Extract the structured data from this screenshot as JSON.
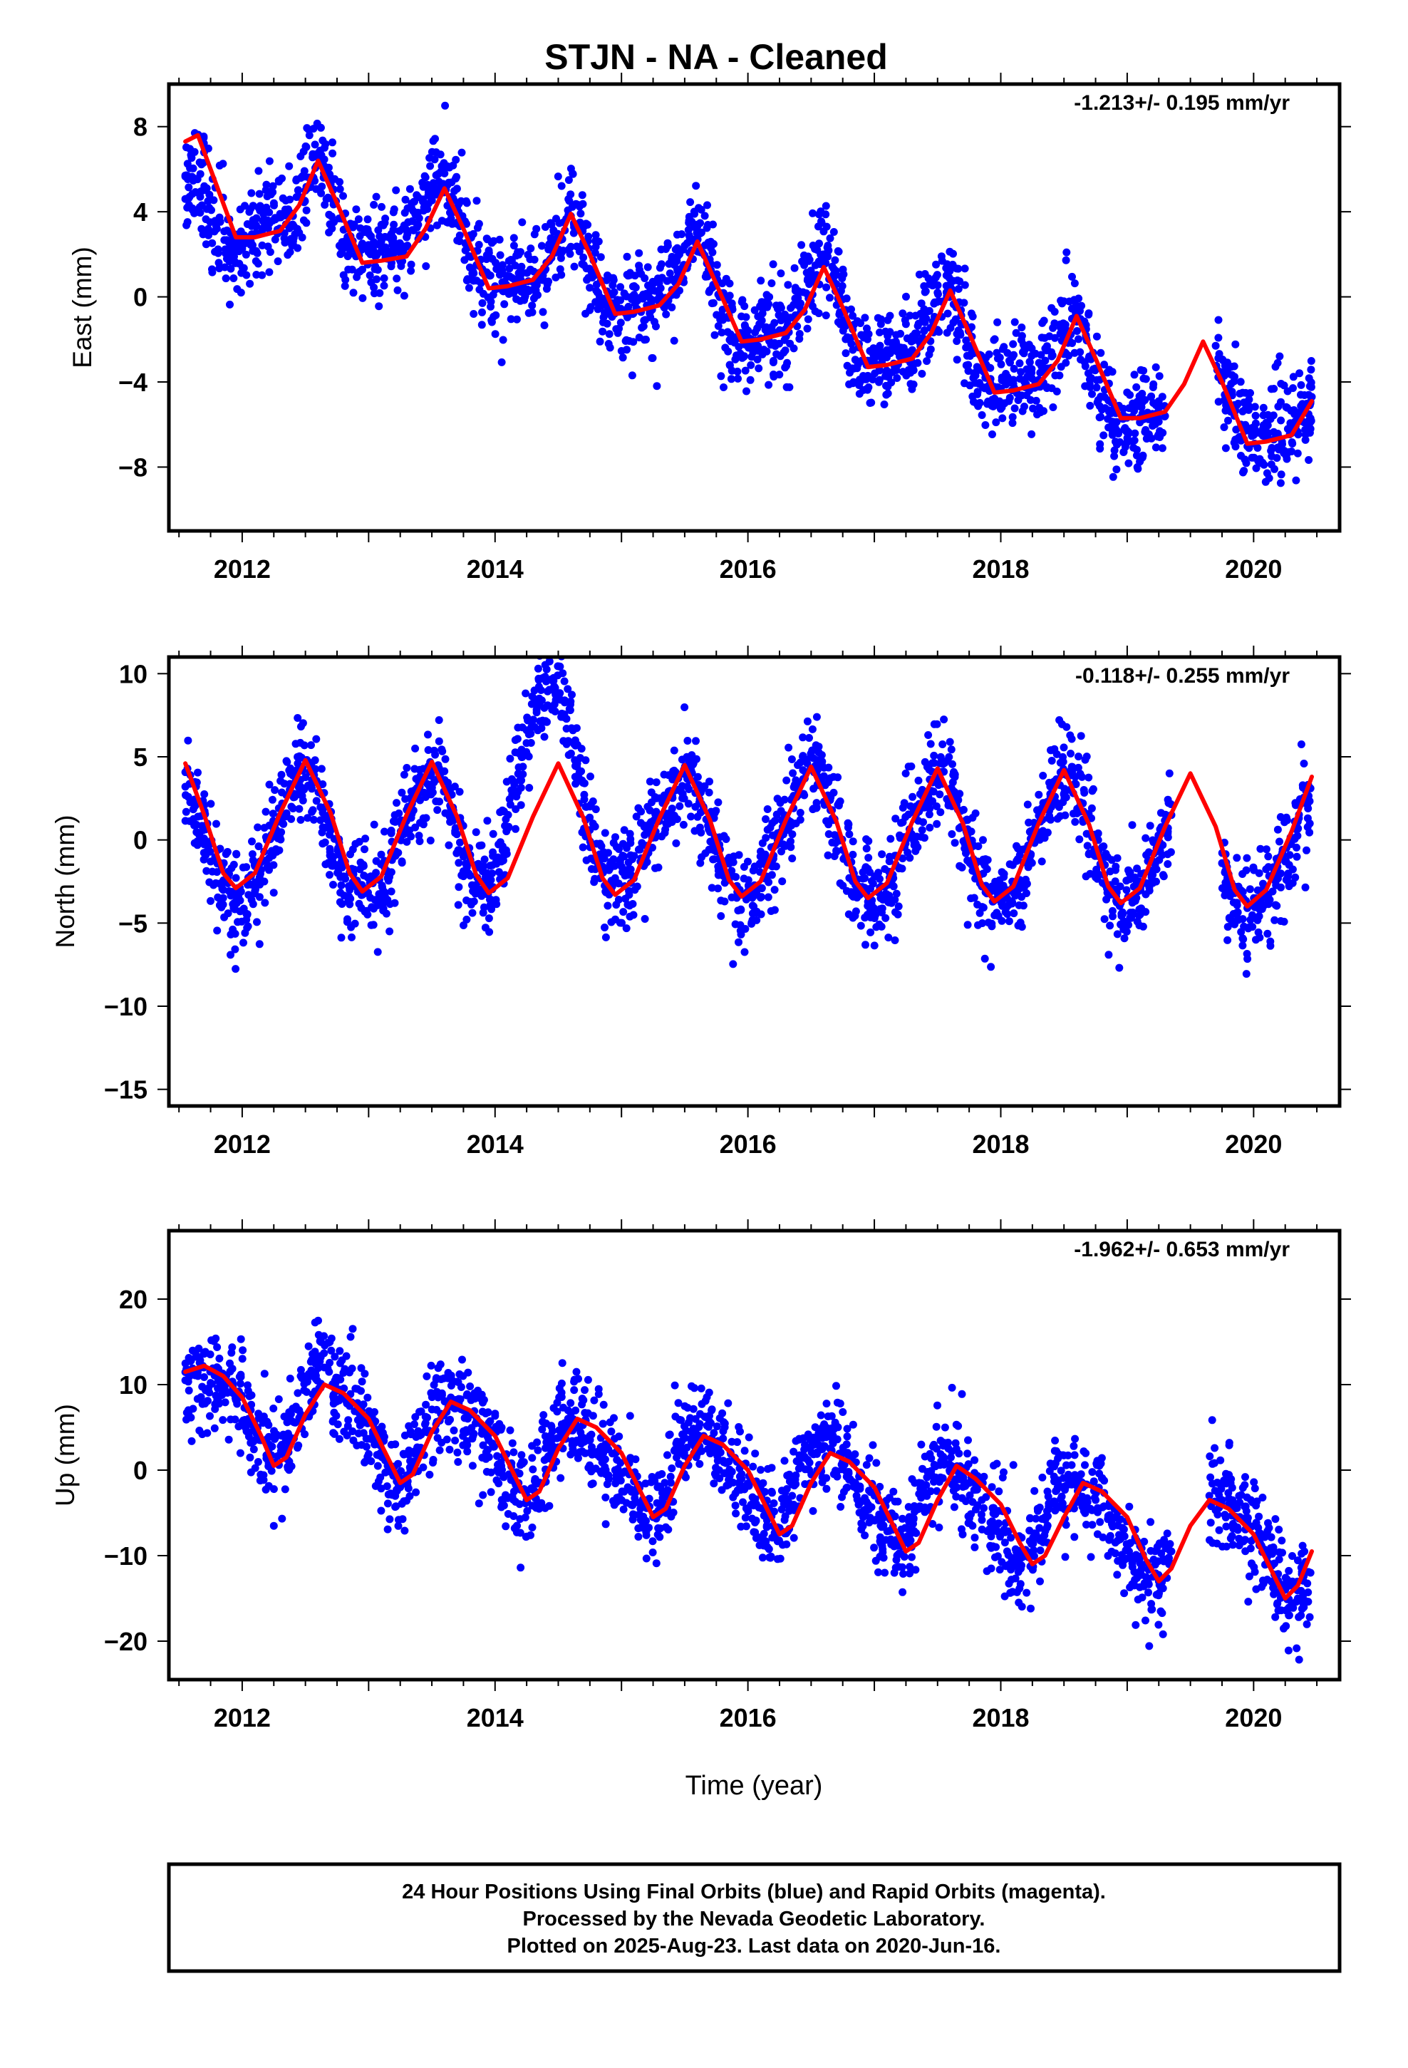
{
  "title": "STJN  - NA - Cleaned",
  "xlabel": "Time (year)",
  "footer": {
    "line1": "24 Hour Positions Using Final Orbits (blue) and Rapid Orbits (magenta).",
    "line2": "Processed by the Nevada Geodetic Laboratory.",
    "line3": "Plotted on 2025-Aug-23. Last data on 2020-Jun-16."
  },
  "colors": {
    "points": "#0000ff",
    "fit": "#ff0000",
    "frame": "#000000",
    "background": "#ffffff"
  },
  "chart_data": [
    {
      "type": "scatter",
      "panel": "east",
      "ylabel": "East (mm)",
      "rate_text": "-1.213+/- 0.195 mm/yr",
      "xlim": [
        2011.42,
        2020.68
      ],
      "ylim": [
        -11,
        10
      ],
      "x_ticks": [
        "2012",
        "2014",
        "2016",
        "2018",
        "2020"
      ],
      "y_ticks": [
        "8",
        "4",
        "0",
        "−4",
        "−8"
      ],
      "grid": false,
      "series": [
        {
          "style": "points",
          "x": [
            2011.55,
            2011.62,
            2011.7,
            2011.8,
            2011.9,
            2012.0,
            2012.1,
            2012.2,
            2012.3,
            2012.4,
            2012.5,
            2012.6,
            2012.7,
            2012.8,
            2012.9,
            2013.0,
            2013.1,
            2013.2,
            2013.3,
            2013.4,
            2013.5,
            2013.6,
            2013.7,
            2013.8,
            2013.9,
            2014.0,
            2014.1,
            2014.2,
            2014.3,
            2014.4,
            2014.5,
            2014.6,
            2014.7,
            2014.8,
            2014.9,
            2015.0,
            2015.1,
            2015.2,
            2015.3,
            2015.4,
            2015.5,
            2015.6,
            2015.7,
            2015.8,
            2015.9,
            2016.0,
            2016.1,
            2016.2,
            2016.3,
            2016.4,
            2016.5,
            2016.6,
            2016.7,
            2016.8,
            2016.9,
            2017.0,
            2017.1,
            2017.2,
            2017.3,
            2017.4,
            2017.5,
            2017.6,
            2017.7,
            2017.8,
            2017.9,
            2018.0,
            2018.1,
            2018.2,
            2018.3,
            2018.4,
            2018.5,
            2018.6,
            2018.7,
            2018.8,
            2018.9,
            2019.0,
            2019.1,
            2019.2,
            2019.3,
            2019.7,
            2019.8,
            2019.9,
            2020.0,
            2020.1,
            2020.2,
            2020.3,
            2020.4,
            2020.46
          ],
          "y": [
            4.6,
            5.5,
            5.2,
            3.2,
            2.3,
            2.6,
            3.4,
            3.6,
            3.9,
            3.4,
            5.0,
            6.6,
            5.3,
            2.4,
            1.9,
            2.1,
            2.6,
            2.3,
            2.8,
            3.7,
            5.1,
            5.8,
            4.2,
            1.9,
            1.3,
            0.5,
            0.4,
            1.0,
            0.7,
            1.3,
            2.9,
            3.8,
            2.4,
            0.3,
            -0.8,
            -0.6,
            0.1,
            -0.4,
            -0.2,
            0.8,
            2.4,
            3.4,
            1.6,
            -0.6,
            -1.9,
            -2.1,
            -1.3,
            -1.7,
            -1.5,
            -0.4,
            0.8,
            1.9,
            0.6,
            -2.0,
            -3.0,
            -3.1,
            -2.5,
            -2.8,
            -2.5,
            -1.2,
            0.2,
            0.5,
            -1.3,
            -3.7,
            -4.2,
            -4.3,
            -3.9,
            -4.1,
            -3.9,
            -2.6,
            -1.3,
            -0.6,
            -2.8,
            -5.3,
            -6.0,
            -6.3,
            -5.9,
            -5.5,
            -5.6,
            -2.3,
            -4.3,
            -6.0,
            -6.5,
            -6.7,
            -6.6,
            -6.4,
            -5.9,
            -4.7
          ]
        },
        {
          "style": "line",
          "x": [
            2011.55,
            2011.65,
            2011.8,
            2011.95,
            2012.1,
            2012.3,
            2012.45,
            2012.6,
            2012.75,
            2012.95,
            2013.1,
            2013.3,
            2013.45,
            2013.6,
            2013.75,
            2013.95,
            2014.1,
            2014.3,
            2014.45,
            2014.6,
            2014.75,
            2014.95,
            2015.1,
            2015.3,
            2015.45,
            2015.6,
            2015.75,
            2015.95,
            2016.1,
            2016.3,
            2016.45,
            2016.6,
            2016.75,
            2016.95,
            2017.1,
            2017.3,
            2017.45,
            2017.6,
            2017.75,
            2017.95,
            2018.1,
            2018.3,
            2018.45,
            2018.6,
            2018.75,
            2018.95,
            2019.1,
            2019.3,
            2019.45,
            2019.6,
            2019.75,
            2019.95,
            2020.1,
            2020.3,
            2020.46
          ],
          "y": [
            7.3,
            7.6,
            5.2,
            2.8,
            2.8,
            3.1,
            4.3,
            6.4,
            4.4,
            1.6,
            1.7,
            1.9,
            3.2,
            5.1,
            3.2,
            0.4,
            0.5,
            0.8,
            1.9,
            3.9,
            2.0,
            -0.8,
            -0.7,
            -0.4,
            0.6,
            2.6,
            0.6,
            -2.1,
            -2.0,
            -1.7,
            -0.6,
            1.4,
            -0.5,
            -3.3,
            -3.2,
            -2.9,
            -1.7,
            0.3,
            -1.7,
            -4.5,
            -4.4,
            -4.1,
            -3.0,
            -0.9,
            -2.9,
            -5.7,
            -5.7,
            -5.4,
            -4.1,
            -2.1,
            -4.0,
            -6.9,
            -6.8,
            -6.5,
            -4.9
          ]
        }
      ]
    },
    {
      "type": "scatter",
      "panel": "north",
      "ylabel": "North (mm)",
      "rate_text": "-0.118+/- 0.255 mm/yr",
      "xlim": [
        2011.42,
        2020.68
      ],
      "ylim": [
        -16,
        11
      ],
      "x_ticks": [
        "2012",
        "2014",
        "2016",
        "2018",
        "2020"
      ],
      "y_ticks": [
        "10",
        "5",
        "0",
        "−5",
        "−10",
        "−15"
      ],
      "grid": false,
      "series": [
        {
          "style": "points",
          "x": [
            2011.55,
            2011.65,
            2011.75,
            2011.85,
            2011.95,
            2012.05,
            2012.15,
            2012.25,
            2012.35,
            2012.45,
            2012.55,
            2012.65,
            2012.75,
            2012.85,
            2012.95,
            2013.05,
            2013.15,
            2013.25,
            2013.35,
            2013.45,
            2013.55,
            2013.65,
            2013.75,
            2013.85,
            2013.95,
            2014.05,
            2014.15,
            2014.25,
            2014.35,
            2014.45,
            2014.55,
            2014.65,
            2014.75,
            2014.85,
            2014.95,
            2015.05,
            2015.15,
            2015.25,
            2015.35,
            2015.45,
            2015.55,
            2015.65,
            2015.75,
            2015.85,
            2015.95,
            2016.05,
            2016.15,
            2016.25,
            2016.35,
            2016.45,
            2016.55,
            2016.65,
            2016.75,
            2016.85,
            2016.95,
            2017.05,
            2017.15,
            2017.25,
            2017.35,
            2017.45,
            2017.55,
            2017.65,
            2017.75,
            2017.85,
            2017.95,
            2018.05,
            2018.15,
            2018.25,
            2018.35,
            2018.45,
            2018.55,
            2018.65,
            2018.75,
            2018.85,
            2018.95,
            2019.05,
            2019.15,
            2019.25,
            2019.35,
            2019.75,
            2019.85,
            2019.95,
            2020.05,
            2020.15,
            2020.25,
            2020.35,
            2020.45
          ],
          "y": [
            3.2,
            1.4,
            -1.3,
            -3.0,
            -3.4,
            -3.3,
            -1.8,
            0.6,
            2.7,
            3.6,
            3.1,
            1.3,
            -1.5,
            -3.0,
            -3.3,
            -3.6,
            -2.3,
            0.3,
            2.4,
            3.8,
            4.5,
            2.0,
            -1.0,
            -2.7,
            -2.6,
            -1.3,
            2.8,
            6.6,
            8.5,
            9.6,
            8.4,
            4.6,
            0.6,
            -1.6,
            -2.3,
            -2.1,
            -1.3,
            0.6,
            2.3,
            3.7,
            4.2,
            1.9,
            -0.7,
            -2.4,
            -3.3,
            -3.3,
            -2.2,
            0.3,
            2.5,
            3.7,
            4.2,
            2.4,
            -0.6,
            -2.7,
            -3.4,
            -3.5,
            -2.3,
            0.1,
            2.1,
            3.6,
            4.1,
            2.1,
            -0.5,
            -2.8,
            -3.6,
            -3.5,
            -2.4,
            -0.1,
            1.9,
            3.4,
            4.1,
            2.2,
            -0.8,
            -2.8,
            -3.8,
            -3.7,
            -2.6,
            -0.6,
            1.5,
            -1.4,
            -3.2,
            -4.1,
            -4.1,
            -3.1,
            -1.3,
            1.1,
            3.1
          ]
        },
        {
          "style": "line",
          "x": [
            2011.55,
            2011.7,
            2011.85,
            2011.95,
            2012.1,
            2012.3,
            2012.5,
            2012.7,
            2012.85,
            2012.95,
            2013.1,
            2013.3,
            2013.5,
            2013.7,
            2013.85,
            2013.95,
            2014.1,
            2014.3,
            2014.5,
            2014.7,
            2014.85,
            2014.95,
            2015.1,
            2015.3,
            2015.5,
            2015.7,
            2015.85,
            2015.95,
            2016.1,
            2016.3,
            2016.5,
            2016.7,
            2016.85,
            2016.95,
            2017.1,
            2017.3,
            2017.5,
            2017.7,
            2017.85,
            2017.95,
            2018.1,
            2018.3,
            2018.5,
            2018.7,
            2018.85,
            2018.95,
            2019.1,
            2019.3,
            2019.5,
            2019.7,
            2019.85,
            2019.95,
            2020.1,
            2020.3,
            2020.46
          ],
          "y": [
            4.6,
            1.5,
            -2.0,
            -2.9,
            -2.0,
            1.6,
            4.8,
            1.6,
            -2.0,
            -3.1,
            -2.2,
            1.5,
            4.7,
            1.4,
            -2.1,
            -3.2,
            -2.3,
            1.4,
            4.6,
            1.3,
            -2.3,
            -3.3,
            -2.4,
            1.3,
            4.5,
            1.2,
            -2.4,
            -3.4,
            -2.5,
            1.2,
            4.4,
            1.1,
            -2.5,
            -3.5,
            -2.6,
            1.1,
            4.3,
            1.0,
            -2.7,
            -3.7,
            -2.8,
            1.0,
            4.2,
            0.9,
            -2.8,
            -3.8,
            -2.9,
            0.8,
            4.0,
            0.8,
            -3.0,
            -4.0,
            -3.0,
            0.5,
            3.8
          ]
        }
      ]
    },
    {
      "type": "scatter",
      "panel": "up",
      "ylabel": "Up (mm)",
      "rate_text": "-1.962+/- 0.653 mm/yr",
      "xlim": [
        2011.42,
        2020.68
      ],
      "ylim": [
        -24.5,
        28
      ],
      "x_ticks": [
        "2012",
        "2014",
        "2016",
        "2018",
        "2020"
      ],
      "y_ticks": [
        "20",
        "10",
        "0",
        "−10",
        "−20"
      ],
      "grid": false,
      "series": [
        {
          "style": "points",
          "x": [
            2011.55,
            2011.65,
            2011.75,
            2011.85,
            2011.95,
            2012.05,
            2012.15,
            2012.25,
            2012.35,
            2012.45,
            2012.55,
            2012.65,
            2012.75,
            2012.85,
            2012.95,
            2013.05,
            2013.15,
            2013.25,
            2013.35,
            2013.45,
            2013.55,
            2013.65,
            2013.75,
            2013.85,
            2013.95,
            2014.05,
            2014.15,
            2014.25,
            2014.35,
            2014.45,
            2014.55,
            2014.65,
            2014.75,
            2014.85,
            2014.95,
            2015.05,
            2015.15,
            2015.25,
            2015.35,
            2015.45,
            2015.55,
            2015.65,
            2015.75,
            2015.85,
            2015.95,
            2016.05,
            2016.15,
            2016.25,
            2016.35,
            2016.45,
            2016.55,
            2016.65,
            2016.75,
            2016.85,
            2016.95,
            2017.05,
            2017.15,
            2017.25,
            2017.35,
            2017.45,
            2017.55,
            2017.65,
            2017.75,
            2017.85,
            2017.95,
            2018.05,
            2018.15,
            2018.25,
            2018.35,
            2018.45,
            2018.55,
            2018.65,
            2018.75,
            2018.85,
            2018.95,
            2019.05,
            2019.15,
            2019.25,
            2019.35,
            2019.65,
            2019.75,
            2019.85,
            2019.95,
            2020.05,
            2020.15,
            2020.25,
            2020.35,
            2020.45
          ],
          "y": [
            10.5,
            11.0,
            10.2,
            9.5,
            8.2,
            6.0,
            3.5,
            0.8,
            2.5,
            7.0,
            11.0,
            12.0,
            9.5,
            7.5,
            5.5,
            3.0,
            0.5,
            -2.0,
            1.0,
            5.5,
            8.5,
            8.5,
            7.0,
            5.5,
            3.5,
            0.5,
            -2.5,
            -3.5,
            -1.5,
            3.5,
            5.5,
            5.0,
            4.0,
            2.0,
            0.0,
            -2.0,
            -4.5,
            -5.5,
            -2.5,
            2.0,
            4.5,
            4.0,
            2.5,
            1.0,
            -1.0,
            -3.5,
            -6.5,
            -7.0,
            -3.0,
            1.5,
            3.0,
            2.5,
            1.0,
            -1.5,
            -4.0,
            -6.5,
            -8.5,
            -8.5,
            -4.5,
            -0.5,
            1.0,
            0.0,
            -1.5,
            -3.5,
            -6.5,
            -9.5,
            -11.0,
            -10.0,
            -5.5,
            -2.0,
            -1.5,
            -2.0,
            -3.5,
            -5.5,
            -8.0,
            -10.5,
            -12.5,
            -13.0,
            -9.5,
            -3.0,
            -3.5,
            -4.5,
            -6.0,
            -8.5,
            -11.0,
            -14.0,
            -15.0,
            -12.0
          ]
        },
        {
          "style": "line",
          "x": [
            2011.55,
            2011.7,
            2011.85,
            2012.0,
            2012.15,
            2012.25,
            2012.35,
            2012.5,
            2012.65,
            2012.8,
            2013.0,
            2013.15,
            2013.25,
            2013.35,
            2013.5,
            2013.65,
            2013.8,
            2014.0,
            2014.15,
            2014.25,
            2014.35,
            2014.5,
            2014.65,
            2014.8,
            2015.0,
            2015.15,
            2015.25,
            2015.35,
            2015.5,
            2015.65,
            2015.8,
            2016.0,
            2016.15,
            2016.25,
            2016.35,
            2016.5,
            2016.65,
            2016.8,
            2017.0,
            2017.15,
            2017.25,
            2017.35,
            2017.5,
            2017.65,
            2017.8,
            2018.0,
            2018.15,
            2018.25,
            2018.35,
            2018.5,
            2018.65,
            2018.8,
            2019.0,
            2019.15,
            2019.25,
            2019.35,
            2019.5,
            2019.65,
            2019.8,
            2020.0,
            2020.15,
            2020.25,
            2020.35,
            2020.46
          ],
          "y": [
            11.5,
            12.2,
            11.0,
            8.5,
            4.0,
            0.5,
            1.5,
            6.5,
            10.0,
            9.0,
            6.0,
            1.5,
            -1.5,
            -0.5,
            4.5,
            8.0,
            7.0,
            4.0,
            -0.5,
            -3.5,
            -2.5,
            2.5,
            6.0,
            5.0,
            2.0,
            -2.5,
            -5.5,
            -4.5,
            0.5,
            4.0,
            3.0,
            0.0,
            -4.5,
            -7.5,
            -6.5,
            -1.5,
            2.0,
            1.0,
            -2.0,
            -6.5,
            -9.5,
            -8.5,
            -3.5,
            0.5,
            -1.0,
            -4.0,
            -8.5,
            -11.0,
            -10.0,
            -5.5,
            -1.5,
            -2.5,
            -5.5,
            -10.5,
            -13.0,
            -11.5,
            -6.5,
            -3.5,
            -4.5,
            -7.5,
            -12.0,
            -15.0,
            -13.5,
            -9.5
          ]
        }
      ]
    }
  ]
}
